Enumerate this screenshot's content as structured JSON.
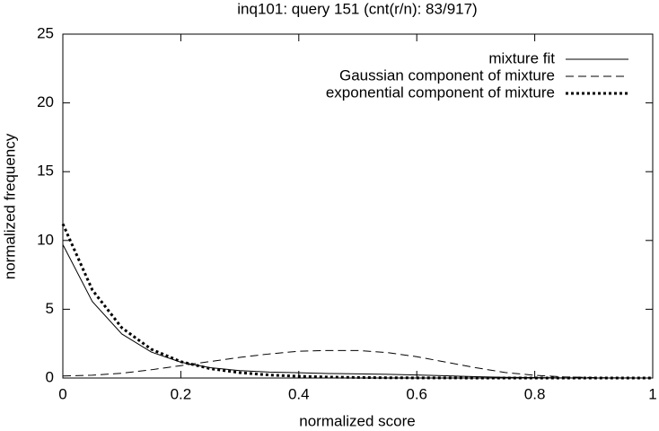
{
  "chart_data": {
    "type": "line",
    "title": "inq101: query 151 (cnt(r/n): 83/917)",
    "x_label": "normalized score",
    "y_label": "normalized frequency",
    "x": [
      0,
      0.05,
      0.1,
      0.15,
      0.2,
      0.25,
      0.3,
      0.35,
      0.4,
      0.45,
      0.5,
      0.55,
      0.6,
      0.65,
      0.7,
      0.75,
      0.8,
      0.85,
      0.9,
      0.95,
      1
    ],
    "series": [
      {
        "name": "mixture fit",
        "color": "#000000",
        "line_style": "solid",
        "values": [
          9.7,
          5.56,
          3.2,
          1.89,
          1.15,
          0.75,
          0.54,
          0.43,
          0.38,
          0.33,
          0.3,
          0.27,
          0.22,
          0.16,
          0.1,
          0.05,
          0.03,
          0.01,
          0,
          0,
          0
        ]
      },
      {
        "name": "Gaussian component of mixture",
        "color": "#000000",
        "line_style": "dashed",
        "values": [
          0.15,
          0.2,
          0.35,
          0.6,
          0.9,
          1.2,
          1.5,
          1.75,
          1.95,
          2.0,
          2.0,
          1.85,
          1.55,
          1.15,
          0.75,
          0.4,
          0.2,
          0.08,
          0.03,
          0.01,
          0
        ]
      },
      {
        "name": "exponential component of mixture",
        "color": "#000000",
        "line_style": "dotted",
        "values": [
          11.2,
          6.4,
          3.65,
          2.09,
          1.19,
          0.68,
          0.39,
          0.22,
          0.13,
          0.07,
          0.04,
          0.02,
          0.01,
          0.01,
          0,
          0,
          0,
          0,
          0,
          0,
          0
        ]
      }
    ],
    "xlim": [
      0,
      1
    ],
    "xticks": [
      0,
      0.2,
      0.4,
      0.6,
      0.8,
      1
    ],
    "ylim": [
      0,
      25
    ],
    "yticks": [
      0,
      5,
      10,
      15,
      20,
      25
    ],
    "legend": "top-right"
  }
}
